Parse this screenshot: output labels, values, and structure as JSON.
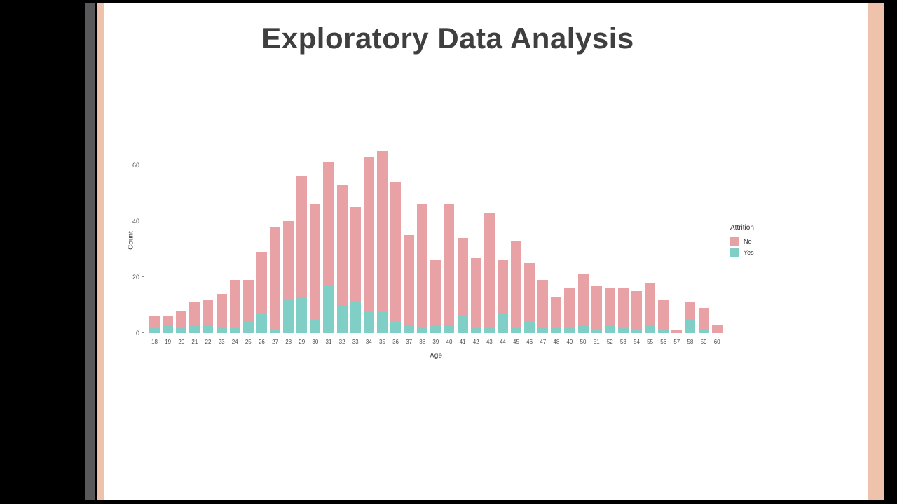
{
  "slide": {
    "title": "Exploratory Data Analysis"
  },
  "theme_colors": {
    "stripe_gray": "#59595b",
    "stripe_salmon": "#efc3ab",
    "slide_background": "#ffffff",
    "title_text": "#3f3f3f"
  },
  "chart_data": {
    "type": "bar",
    "stacked": true,
    "title": "",
    "xlabel": "Age",
    "ylabel": "Count",
    "ylim": [
      0,
      65
    ],
    "yticks": [
      0,
      20,
      40,
      60
    ],
    "grid": false,
    "legend_position": "right",
    "categories": [
      "18",
      "19",
      "20",
      "21",
      "22",
      "23",
      "24",
      "25",
      "26",
      "27",
      "28",
      "29",
      "30",
      "31",
      "32",
      "33",
      "34",
      "35",
      "36",
      "37",
      "38",
      "39",
      "40",
      "41",
      "42",
      "43",
      "44",
      "45",
      "46",
      "47",
      "48",
      "49",
      "50",
      "51",
      "52",
      "53",
      "54",
      "55",
      "56",
      "57",
      "58",
      "59",
      "60"
    ],
    "series": [
      {
        "name": "No",
        "color": "#e8a2a6",
        "values": [
          4,
          3,
          6,
          8,
          9,
          12,
          17,
          15,
          22,
          37,
          28,
          43,
          41,
          44,
          43,
          34,
          55,
          57,
          50,
          32,
          44,
          23,
          43,
          28,
          25,
          41,
          19,
          31,
          21,
          17,
          11,
          14,
          18,
          16,
          13,
          14,
          14,
          15,
          11,
          1,
          6,
          8,
          3
        ]
      },
      {
        "name": "Yes",
        "color": "#7fcfc6",
        "values": [
          2,
          3,
          2,
          3,
          3,
          2,
          2,
          4,
          7,
          1,
          12,
          13,
          5,
          17,
          10,
          11,
          8,
          8,
          4,
          3,
          2,
          3,
          3,
          6,
          2,
          2,
          7,
          2,
          4,
          2,
          2,
          2,
          3,
          1,
          3,
          2,
          1,
          3,
          1,
          0,
          5,
          1,
          0
        ]
      }
    ],
    "legend": {
      "title": "Attrition",
      "entries": [
        "No",
        "Yes"
      ]
    }
  }
}
